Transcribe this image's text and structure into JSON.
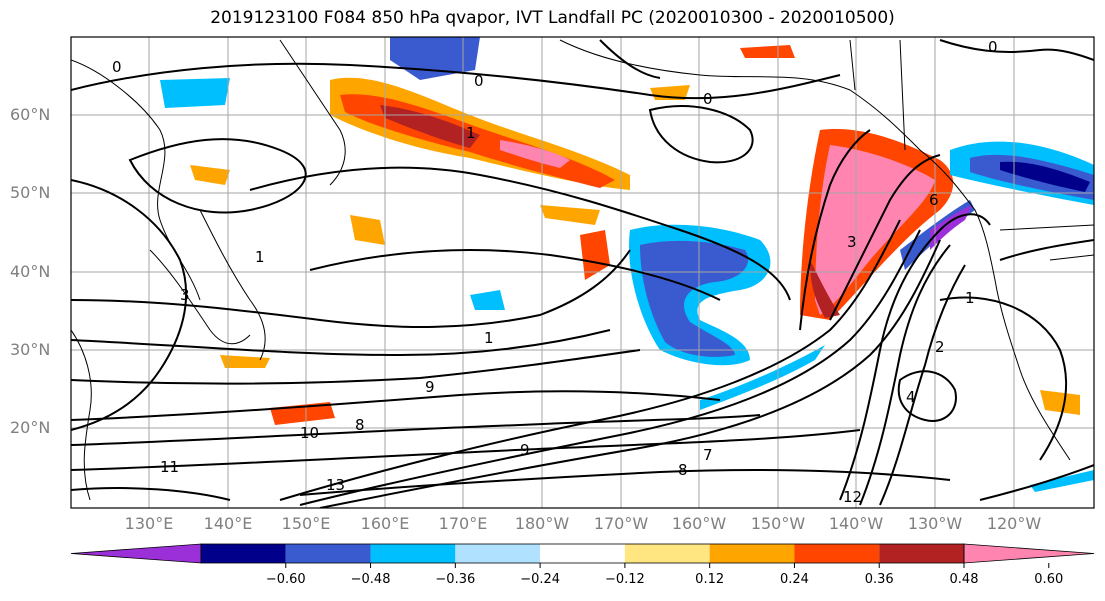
{
  "title": "2019123100 F084 850 hPa qvapor, IVT Landfall PC (2020010300 - 2020010500)",
  "lat_labels": [
    "60°N",
    "50°N",
    "40°N",
    "30°N",
    "20°N"
  ],
  "lon_labels": [
    "130°E",
    "140°E",
    "150°E",
    "160°E",
    "170°E",
    "180°W",
    "170°W",
    "160°W",
    "150°W",
    "140°W",
    "130°W",
    "120°W"
  ],
  "colorbar": {
    "ticks": [
      "−0.60",
      "−0.48",
      "−0.36",
      "−0.24",
      "−0.12",
      "0.12",
      "0.24",
      "0.36",
      "0.48",
      "0.60"
    ],
    "colors": [
      "#9b30d9",
      "#00008b",
      "#3a5bd0",
      "#00bfff",
      "#b0e2ff",
      "#ffffff",
      "#ffe680",
      "#ffa500",
      "#ff4500",
      "#b22222",
      "#ff85b0"
    ]
  },
  "contour_labels": [
    "0",
    "0",
    "0",
    "0",
    "1",
    "1",
    "1",
    "1",
    "2",
    "3",
    "3",
    "4",
    "6",
    "7",
    "8",
    "8",
    "9",
    "9",
    "10",
    "11",
    "12",
    "13"
  ]
}
